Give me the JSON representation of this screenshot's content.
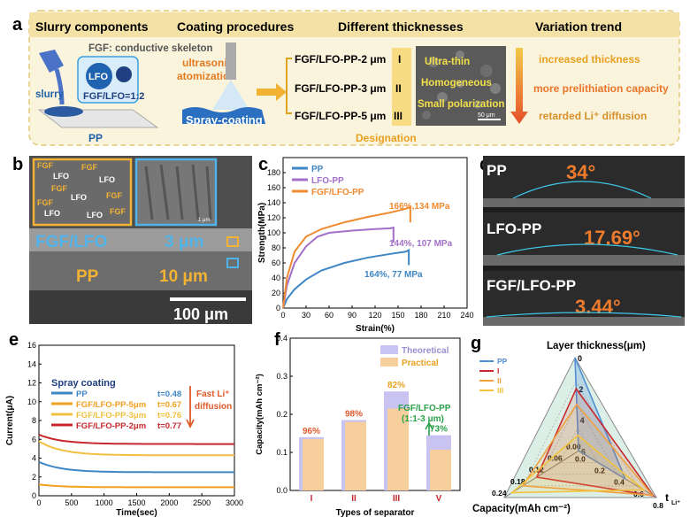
{
  "panel_a": {
    "letter": "a",
    "headers": [
      "Slurry components",
      "Coating procedures",
      "Different thicknesses",
      "Variation trend"
    ],
    "fgf_skeleton": "FGF: conductive skeleton",
    "lfo": "LFO",
    "ratio": "FGF/LFO=1:2",
    "slurry": "slurry",
    "pp": "PP",
    "ultrasonic": "ultrasonic",
    "atomization": "atomization",
    "spray": "Spray-coating",
    "samples": [
      {
        "label": "FGF/LFO-PP-2 μm",
        "roman": "I"
      },
      {
        "label": "FGF/LFO-PP-3 μm",
        "roman": "II"
      },
      {
        "label": "FGF/LFO-PP-5 μm",
        "roman": "III"
      }
    ],
    "sem_notes": [
      "Ultra-thin",
      "Homogeneous",
      "Small polarization"
    ],
    "scale": "50 μm",
    "designation": "Designation",
    "trends": [
      "increased thickness",
      "more prelithiation capacity",
      "retarded Li⁺ diffusion"
    ]
  },
  "panel_b": {
    "letter": "b",
    "fgf_labels": [
      "FGF",
      "LFO",
      "FGF",
      "LFO",
      "FGF",
      "FGF",
      "LFO",
      "FGF",
      "LFO",
      "LFO",
      "FGF"
    ],
    "inset_scale": "1 μm",
    "layer_top": "FGF/LFO",
    "thick_top": "3 μm",
    "layer_bottom": "PP",
    "thick_bottom": "10 μm",
    "scale": "100 μm"
  },
  "panel_d": {
    "letter": "d",
    "rows": [
      {
        "name": "PP",
        "angle": "34°"
      },
      {
        "name": "LFO-PP",
        "angle": "17.69°"
      },
      {
        "name": "FGF/LFO-PP",
        "angle": "3.44°"
      }
    ]
  },
  "chart_data": [
    {
      "id": "c",
      "type": "line",
      "xlabel": "Strain(%)",
      "ylabel": "Strength(MPa)",
      "xlim": [
        0,
        240
      ],
      "ylim": [
        0,
        200
      ],
      "xticks": [
        0,
        30,
        60,
        90,
        120,
        150,
        180,
        210,
        240
      ],
      "yticks": [
        0,
        20,
        40,
        60,
        80,
        100,
        120,
        140,
        160,
        180
      ],
      "series": [
        {
          "name": "PP",
          "color": "#3f86c6",
          "x": [
            0,
            5,
            15,
            30,
            50,
            80,
            110,
            140,
            160,
            164
          ],
          "y": [
            0,
            12,
            25,
            38,
            50,
            60,
            67,
            72,
            75,
            77
          ]
        },
        {
          "name": "LFO-PP",
          "color": "#a270c8",
          "x": [
            0,
            5,
            15,
            30,
            45,
            60,
            90,
            120,
            140,
            144
          ],
          "y": [
            0,
            30,
            60,
            82,
            95,
            100,
            103,
            105,
            106,
            107
          ]
        },
        {
          "name": "FGF/LFO-PP",
          "color": "#ef8a30",
          "x": [
            0,
            5,
            15,
            30,
            50,
            80,
            110,
            140,
            160,
            166
          ],
          "y": [
            0,
            40,
            75,
            95,
            105,
            114,
            121,
            127,
            132,
            134
          ]
        }
      ],
      "annotations": [
        "164%, 77 MPa",
        "144%, 107 MPa",
        "166%,134 MPa"
      ]
    },
    {
      "id": "e",
      "type": "line",
      "xlabel": "Time(sec)",
      "ylabel": "Current(μA)",
      "xlim": [
        0,
        3000
      ],
      "ylim": [
        0,
        16
      ],
      "xticks": [
        0,
        500,
        1000,
        1500,
        2000,
        2500,
        3000
      ],
      "yticks": [
        0,
        2,
        4,
        6,
        8,
        10,
        12,
        14,
        16
      ],
      "legend_title": "Spray coating",
      "series": [
        {
          "name": "PP",
          "color": "#3f86c6",
          "t": "t=0.48",
          "start": 3.6,
          "end": 2.5
        },
        {
          "name": "FGF/LFO-PP-5μm",
          "color": "#f2a020",
          "t": "t=0.67",
          "start": 1.2,
          "end": 0.9
        },
        {
          "name": "FGF/LFO-PP-3μm",
          "color": "#f0c040",
          "t": "t=0.76",
          "start": 5.8,
          "end": 4.3
        },
        {
          "name": "FGF/LFO-PP-2μm",
          "color": "#c8282d",
          "t": "t=0.77",
          "start": 6.5,
          "end": 5.5
        }
      ],
      "arrow_note": [
        "Fast Li⁺",
        "diffusion"
      ]
    },
    {
      "id": "f",
      "type": "bar",
      "xlabel": "Types of separator",
      "ylabel": "Capacity(mAh cm⁻²)",
      "ylim": [
        0,
        0.4
      ],
      "yticks": [
        0.0,
        0.1,
        0.2,
        0.3,
        0.4
      ],
      "categories": [
        "I",
        "II",
        "III",
        "V"
      ],
      "series": [
        {
          "name": "Theoretical",
          "values": [
            0.14,
            0.185,
            0.26,
            0.145
          ]
        },
        {
          "name": "Practical",
          "values": [
            0.135,
            0.18,
            0.215,
            0.107
          ]
        }
      ],
      "percent_labels": [
        "96%",
        "98%",
        "82%",
        "73%"
      ],
      "note": [
        "FGF/LFO-PP",
        "(1:1-3 μm)"
      ]
    },
    {
      "id": "g",
      "type": "radar",
      "axes": [
        "Layer thickness(μm)",
        "t_Li+",
        "Capacity(mAh cm⁻²)"
      ],
      "thickness_ticks": [
        "0",
        "2",
        "4",
        "6"
      ],
      "t_ticks": [
        "0.0",
        "0.2",
        "0.4",
        "0.6",
        "0.8"
      ],
      "cap_ticks": [
        "0.00",
        "0.06",
        "0.12",
        "0.18",
        "0.24"
      ],
      "series": [
        {
          "name": "PP",
          "thickness": 0,
          "t": 0.48,
          "capacity": 0
        },
        {
          "name": "I",
          "thickness": 2,
          "t": 0.77,
          "capacity": 0.135
        },
        {
          "name": "II",
          "thickness": 3,
          "t": 0.76,
          "capacity": 0.18
        },
        {
          "name": "III",
          "thickness": 5,
          "t": 0.67,
          "capacity": 0.215
        }
      ]
    }
  ],
  "labels": {
    "c": "c",
    "e": "e",
    "f": "f",
    "g": "g",
    "g_top": "Layer thickness(μm)",
    "g_left": "Capacity(mAh cm⁻²)",
    "g_right": "t",
    "g_right_sub": "Li⁺"
  }
}
